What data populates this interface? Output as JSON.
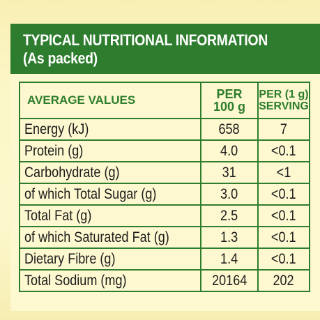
{
  "header": {
    "title": "TYPICAL NUTRITIONAL INFORMATION",
    "subtitle": "(As packed)"
  },
  "table": {
    "columns": {
      "label": "AVERAGE VALUES",
      "per100_line1": "PER",
      "per100_line2": "100 g",
      "serving_line1": "PER (1 g)",
      "serving_line2": "SERVING"
    },
    "rows": [
      {
        "label": "Energy (kJ)",
        "per100": "658",
        "serving": "7"
      },
      {
        "label": "Protein (g)",
        "per100": "4.0",
        "serving": "<0.1"
      },
      {
        "label": "Carbohydrate (g)",
        "per100": "31",
        "serving": "<1"
      },
      {
        "label": "of which Total Sugar (g)",
        "per100": "3.0",
        "serving": "<0.1"
      },
      {
        "label": "Total Fat (g)",
        "per100": "2.5",
        "serving": "<0.1"
      },
      {
        "label": "of which Saturated Fat (g)",
        "per100": "1.3",
        "serving": "<0.1"
      },
      {
        "label": "Dietary Fibre (g)",
        "per100": "1.4",
        "serving": "<0.1"
      },
      {
        "label": "Total Sodium (mg)",
        "per100": "20164",
        "serving": "202"
      }
    ]
  },
  "colors": {
    "brand_green": "#2e7d2e",
    "background": "#fcf6c4",
    "text": "#1c1c1c"
  }
}
